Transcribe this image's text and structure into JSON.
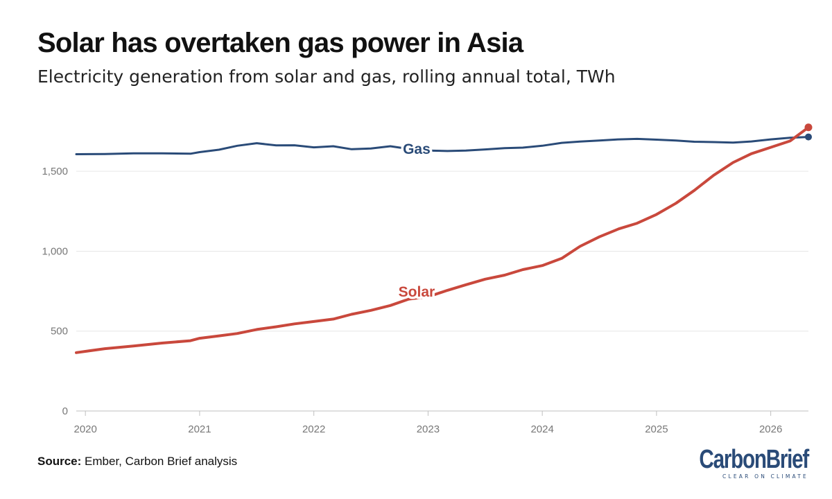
{
  "header": {
    "title": "Solar has overtaken gas power in Asia",
    "subtitle": "Electricity generation from solar and gas, rolling annual total, TWh"
  },
  "footer": {
    "source_label": "Source:",
    "source_text": "Ember, Carbon Brief analysis",
    "logo_text": "CarbonBrief",
    "logo_tagline": "CLEAR ON CLIMATE"
  },
  "chart_data": {
    "type": "line",
    "title": "Solar has overtaken gas power in Asia",
    "subtitle": "Electricity generation from solar and gas, rolling annual total, TWh",
    "xlabel": "",
    "ylabel": "",
    "xlim": [
      2019.92,
      2026.33
    ],
    "ylim": [
      0,
      1800
    ],
    "yticks": [
      0,
      500,
      1000,
      1500
    ],
    "ytick_labels": [
      "0",
      "500",
      "1,000",
      "1,500"
    ],
    "xticks": [
      2020,
      2021,
      2022,
      2023,
      2024,
      2025,
      2026
    ],
    "xtick_labels": [
      "2020",
      "2021",
      "2022",
      "2023",
      "2024",
      "2025",
      "2026"
    ],
    "grid": "horizontal",
    "legend": "direct labels",
    "colors": {
      "Gas": "#2a4b78",
      "Solar": "#c9483c",
      "grid": "#e6e6e6",
      "axis_text": "#777777"
    },
    "series": [
      {
        "name": "Gas",
        "label_pos": [
          2022.9,
          1640
        ],
        "x": [
          2019.92,
          2020.17,
          2020.42,
          2020.67,
          2020.92,
          2021.0,
          2021.17,
          2021.33,
          2021.5,
          2021.67,
          2021.83,
          2022.0,
          2022.17,
          2022.33,
          2022.5,
          2022.67,
          2022.83,
          2023.0,
          2023.17,
          2023.33,
          2023.5,
          2023.67,
          2023.83,
          2024.0,
          2024.17,
          2024.33,
          2024.5,
          2024.67,
          2024.83,
          2025.0,
          2025.17,
          2025.33,
          2025.5,
          2025.67,
          2025.83,
          2026.0,
          2026.17,
          2026.33
        ],
        "values": [
          1607,
          1608,
          1612,
          1612,
          1610,
          1620,
          1635,
          1660,
          1676,
          1662,
          1663,
          1650,
          1657,
          1638,
          1643,
          1657,
          1640,
          1630,
          1627,
          1630,
          1637,
          1645,
          1648,
          1660,
          1678,
          1686,
          1693,
          1700,
          1703,
          1698,
          1693,
          1685,
          1683,
          1680,
          1687,
          1700,
          1710,
          1715
        ]
      },
      {
        "name": "Solar",
        "label_pos": [
          2022.9,
          745
        ],
        "x": [
          2019.92,
          2020.17,
          2020.42,
          2020.67,
          2020.92,
          2021.0,
          2021.17,
          2021.33,
          2021.5,
          2021.67,
          2021.83,
          2022.0,
          2022.17,
          2022.33,
          2022.5,
          2022.67,
          2022.83,
          2023.0,
          2023.17,
          2023.33,
          2023.5,
          2023.67,
          2023.83,
          2024.0,
          2024.17,
          2024.33,
          2024.5,
          2024.67,
          2024.83,
          2025.0,
          2025.17,
          2025.33,
          2025.5,
          2025.67,
          2025.83,
          2026.0,
          2026.17,
          2026.33
        ],
        "values": [
          365,
          390,
          407,
          425,
          440,
          455,
          470,
          485,
          510,
          527,
          545,
          560,
          575,
          605,
          630,
          660,
          700,
          715,
          755,
          790,
          825,
          850,
          885,
          910,
          955,
          1030,
          1090,
          1140,
          1175,
          1230,
          1300,
          1380,
          1475,
          1555,
          1610,
          1650,
          1690,
          1775
        ]
      }
    ]
  }
}
